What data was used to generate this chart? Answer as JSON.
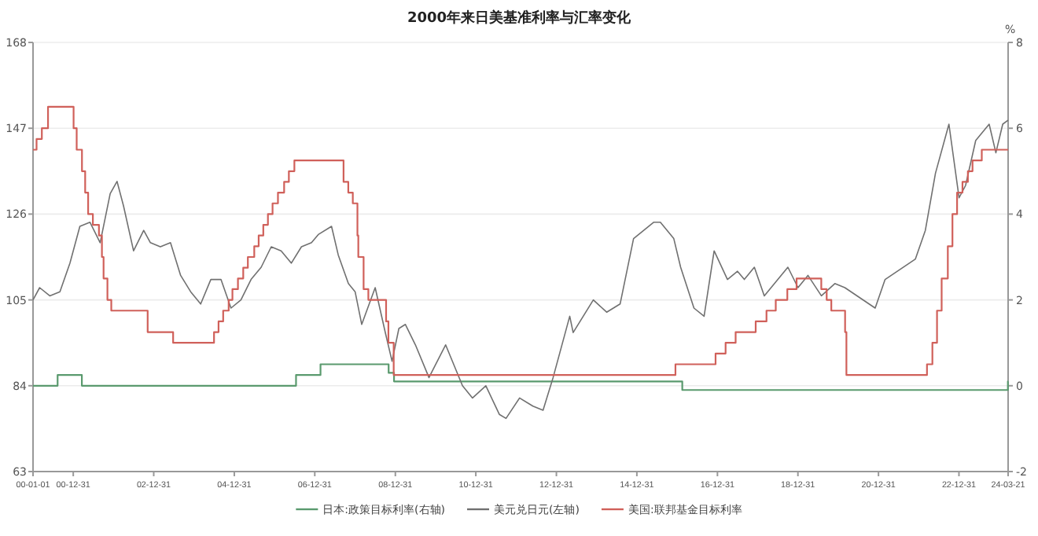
{
  "chart_data": {
    "type": "line",
    "title": "2000年来日美基准利率与汇率变化",
    "y2label": "%",
    "xlim": [
      "2000-01-01",
      "2024-03-21"
    ],
    "xticks": [
      {
        "value": "2000-01-01",
        "label": "00-01-01"
      },
      {
        "value": "2000-12-31",
        "label": "00-12-31"
      },
      {
        "value": "2002-12-31",
        "label": "02-12-31"
      },
      {
        "value": "2004-12-31",
        "label": "04-12-31"
      },
      {
        "value": "2006-12-31",
        "label": "06-12-31"
      },
      {
        "value": "2008-12-31",
        "label": "08-12-31"
      },
      {
        "value": "2010-12-31",
        "label": "10-12-31"
      },
      {
        "value": "2012-12-31",
        "label": "12-12-31"
      },
      {
        "value": "2014-12-31",
        "label": "14-12-31"
      },
      {
        "value": "2016-12-31",
        "label": "16-12-31"
      },
      {
        "value": "2018-12-31",
        "label": "18-12-31"
      },
      {
        "value": "2020-12-31",
        "label": "20-12-31"
      },
      {
        "value": "2022-12-31",
        "label": "22-12-31"
      },
      {
        "value": "2024-03-21",
        "label": "24-03-21"
      }
    ],
    "ylim": [
      63,
      168
    ],
    "yticks": [
      63,
      84,
      105,
      126,
      147,
      168
    ],
    "y2lim": [
      -2,
      8
    ],
    "y2ticks": [
      -2,
      0,
      2,
      4,
      6,
      8
    ],
    "grid": "y",
    "legend": "bottom",
    "marker": "none",
    "line_style": "solid",
    "series": [
      {
        "name": "日本:政策目标利率(右轴)",
        "type": "step",
        "axis": "y2",
        "color": "#5a9a6e",
        "x": [
          "2000-01-01",
          "2000-08-11",
          "2001-03-19",
          "2006-07-14",
          "2007-02-21",
          "2008-10-31",
          "2008-12-19",
          "2016-02-16",
          "2024-03-19",
          "2024-03-21"
        ],
        "values": [
          0,
          0.25,
          0,
          0.25,
          0.5,
          0.3,
          0.1,
          -0.1,
          0.1,
          0.1
        ]
      },
      {
        "name": "美元兑日元(左轴)",
        "type": "line",
        "axis": "y",
        "color": "#707070",
        "x": [
          "2000-01-01",
          "2000-03-01",
          "2000-06-01",
          "2000-09-01",
          "2000-12-01",
          "2001-03-01",
          "2001-06-01",
          "2001-09-01",
          "2001-12-01",
          "2002-02-01",
          "2002-04-01",
          "2002-07-01",
          "2002-10-01",
          "2002-12-01",
          "2003-03-01",
          "2003-06-01",
          "2003-09-01",
          "2003-12-01",
          "2004-03-01",
          "2004-06-01",
          "2004-09-01",
          "2004-12-01",
          "2005-03-01",
          "2005-06-01",
          "2005-09-01",
          "2005-12-01",
          "2006-03-01",
          "2006-06-01",
          "2006-09-01",
          "2006-12-01",
          "2007-02-01",
          "2007-06-01",
          "2007-08-01",
          "2007-11-01",
          "2008-01-01",
          "2008-03-01",
          "2008-07-01",
          "2008-10-01",
          "2008-12-01",
          "2009-02-01",
          "2009-04-01",
          "2009-07-01",
          "2009-11-01",
          "2010-04-01",
          "2010-09-01",
          "2010-12-01",
          "2011-04-01",
          "2011-08-01",
          "2011-10-01",
          "2012-02-01",
          "2012-06-01",
          "2012-09-01",
          "2012-12-01",
          "2013-05-01",
          "2013-06-01",
          "2013-12-01",
          "2014-04-01",
          "2014-08-01",
          "2014-12-01",
          "2015-06-01",
          "2015-08-01",
          "2015-12-01",
          "2016-02-01",
          "2016-06-01",
          "2016-09-01",
          "2016-12-01",
          "2017-04-01",
          "2017-07-01",
          "2017-09-01",
          "2017-12-01",
          "2018-03-01",
          "2018-10-01",
          "2019-01-01",
          "2019-04-01",
          "2019-08-01",
          "2019-12-01",
          "2020-03-01",
          "2020-12-01",
          "2021-03-01",
          "2021-12-01",
          "2022-03-01",
          "2022-06-01",
          "2022-10-01",
          "2023-01-01",
          "2023-03-01",
          "2023-06-01",
          "2023-10-01",
          "2023-12-01",
          "2024-02-01",
          "2024-03-21"
        ],
        "values": [
          105,
          108,
          106,
          107,
          114,
          123,
          124,
          119,
          131,
          134,
          128,
          117,
          122,
          119,
          118,
          119,
          111,
          107,
          104,
          110,
          110,
          103,
          105,
          110,
          113,
          118,
          117,
          114,
          118,
          119,
          121,
          123,
          116,
          109,
          107,
          99,
          108,
          97,
          90,
          98,
          99,
          94,
          86,
          94,
          84,
          81,
          84,
          77,
          76,
          81,
          79,
          78,
          86,
          101,
          97,
          105,
          102,
          104,
          120,
          124,
          124,
          120,
          113,
          103,
          101,
          117,
          110,
          112,
          110,
          113,
          106,
          113,
          108,
          111,
          106,
          109,
          108,
          103,
          110,
          115,
          122,
          136,
          148,
          130,
          133,
          144,
          148,
          141,
          148,
          149
        ]
      },
      {
        "name": "美国:联邦基金目标利率",
        "type": "step",
        "axis": "y2",
        "color": "#d0605a",
        "x": [
          "2000-01-01",
          "2000-02-02",
          "2000-03-21",
          "2000-05-16",
          "2001-01-03",
          "2001-01-31",
          "2001-03-20",
          "2001-04-18",
          "2001-05-15",
          "2001-06-27",
          "2001-08-21",
          "2001-09-17",
          "2001-10-02",
          "2001-11-06",
          "2001-12-11",
          "2002-11-06",
          "2003-06-25",
          "2004-06-30",
          "2004-08-10",
          "2004-09-21",
          "2004-11-10",
          "2004-12-14",
          "2005-02-02",
          "2005-03-22",
          "2005-05-03",
          "2005-06-30",
          "2005-08-09",
          "2005-09-20",
          "2005-11-01",
          "2005-12-13",
          "2006-01-31",
          "2006-03-28",
          "2006-05-10",
          "2006-06-29",
          "2007-09-18",
          "2007-10-31",
          "2007-12-11",
          "2008-01-22",
          "2008-01-30",
          "2008-03-18",
          "2008-04-30",
          "2008-10-08",
          "2008-10-29",
          "2008-12-16",
          "2015-12-16",
          "2016-12-14",
          "2017-03-15",
          "2017-06-14",
          "2017-12-13",
          "2018-03-21",
          "2018-06-13",
          "2018-09-26",
          "2018-12-19",
          "2019-07-31",
          "2019-09-18",
          "2019-10-30",
          "2020-03-03",
          "2020-03-15",
          "2022-03-16",
          "2022-05-04",
          "2022-06-15",
          "2022-07-27",
          "2022-09-21",
          "2022-11-02",
          "2022-12-14",
          "2023-02-01",
          "2023-03-22",
          "2023-05-03",
          "2023-07-26",
          "2024-03-21"
        ],
        "values": [
          5.5,
          5.75,
          6,
          6.5,
          6,
          5.5,
          5,
          4.5,
          4,
          3.75,
          3.5,
          3,
          2.5,
          2,
          1.75,
          1.25,
          1,
          1.25,
          1.5,
          1.75,
          2,
          2.25,
          2.5,
          2.75,
          3,
          3.25,
          3.5,
          3.75,
          4,
          4.25,
          4.5,
          4.75,
          5,
          5.25,
          4.75,
          4.5,
          4.25,
          3.5,
          3,
          2.25,
          2,
          1.5,
          1,
          0.25,
          0.5,
          0.75,
          1,
          1.25,
          1.5,
          1.75,
          2,
          2.25,
          2.5,
          2.25,
          2,
          1.75,
          1.25,
          0.25,
          0.5,
          1,
          1.75,
          2.5,
          3.25,
          4,
          4.5,
          4.75,
          5,
          5.25,
          5.5,
          5.5
        ]
      }
    ]
  }
}
